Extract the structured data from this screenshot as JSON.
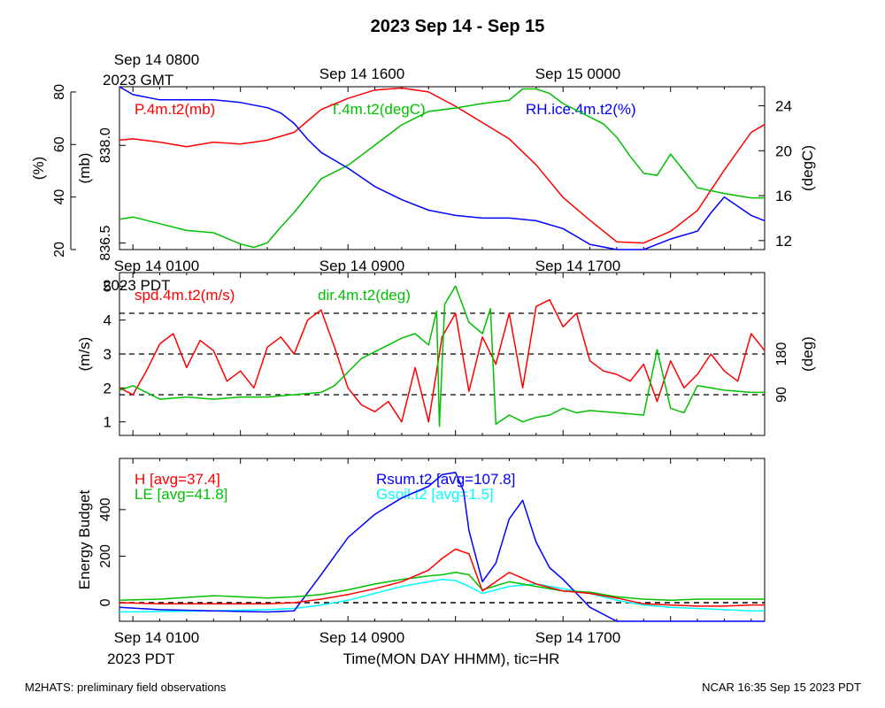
{
  "title": "2023 Sep 14 - Sep 15",
  "footer_left": "M2HATS: preliminary field observations",
  "footer_right": "NCAR 16:35 Sep 15 2023 PDT",
  "top_axis": {
    "labels": [
      "Sep 14 0800",
      "Sep 14 1600",
      "Sep 15 0000"
    ],
    "timezone": "2023 GMT"
  },
  "bottom_axis": {
    "labels": [
      "Sep 14 0100",
      "Sep 14 0900",
      "Sep 14 1700"
    ],
    "timezone": "2023 PDT",
    "xlabel": "Time(MON DAY HHMM), tic=HR"
  },
  "chart_data": [
    {
      "type": "line",
      "x_range_hours_pdt": [
        0.5,
        24.5
      ],
      "axes": {
        "rh_pct": {
          "label": "(%)",
          "ticks": [
            20,
            40,
            60,
            80
          ],
          "range": [
            20,
            82
          ]
        },
        "pressure_mb": {
          "label": "(mb)",
          "ticks": [
            "836.5",
            "838.0"
          ],
          "range": [
            836.4,
            838.9
          ]
        },
        "temp_degC": {
          "label": "(degC)",
          "ticks": [
            12,
            16,
            20,
            24
          ],
          "range": [
            11.2,
            25.7
          ]
        }
      },
      "series": [
        {
          "name": "P.4m.t2(mb)",
          "color": "#ff0000",
          "axis": "pressure_mb",
          "x": [
            0.5,
            1,
            2,
            3,
            4,
            5,
            6,
            7,
            8,
            9,
            10,
            11,
            12,
            13,
            14,
            15,
            16,
            17,
            18,
            19,
            20,
            21,
            22,
            23,
            24,
            24.5
          ],
          "y": [
            838.08,
            838.1,
            838.05,
            837.98,
            838.05,
            838.02,
            838.08,
            838.2,
            838.55,
            838.72,
            838.85,
            838.88,
            838.82,
            838.6,
            838.35,
            838.1,
            837.7,
            837.2,
            836.85,
            836.52,
            836.5,
            836.68,
            837.0,
            837.62,
            838.2,
            838.32
          ]
        },
        {
          "name": "T.4m.t2(degC)",
          "color": "#00c000",
          "axis": "temp_degC",
          "x": [
            0.5,
            1,
            2,
            3,
            4,
            5,
            5.5,
            6,
            6.5,
            7,
            8,
            9,
            10,
            11,
            12,
            13,
            14,
            15,
            15.5,
            16,
            16.5,
            17,
            18,
            18.5,
            19,
            19.5,
            20,
            20.5,
            21,
            22,
            23,
            24,
            24.5
          ],
          "y": [
            13.9,
            14.1,
            13.5,
            12.9,
            12.7,
            11.7,
            11.4,
            11.8,
            13.2,
            14.5,
            17.5,
            18.7,
            20.5,
            22.3,
            23.5,
            23.8,
            24.2,
            24.5,
            25.5,
            25.5,
            25.1,
            24.2,
            23.0,
            22.4,
            21.2,
            19.5,
            18.0,
            17.8,
            19.7,
            16.7,
            16.2,
            15.8,
            15.8
          ]
        },
        {
          "name": "RH.ice.4m.t2(%)",
          "color": "#0000ff",
          "axis": "rh_pct",
          "x": [
            0.5,
            1,
            2,
            3,
            4,
            5,
            6,
            6.5,
            7,
            7.5,
            8,
            9,
            10,
            11,
            12,
            13,
            14,
            15,
            16,
            17,
            18,
            19,
            20,
            20.5,
            21,
            22,
            22.5,
            23,
            24,
            24.5
          ],
          "y": [
            82,
            79,
            77,
            77,
            77,
            76,
            74,
            72,
            68,
            62,
            57,
            51,
            44,
            39,
            35,
            33,
            32,
            32,
            31,
            28,
            22,
            20,
            20,
            22,
            24,
            27,
            34,
            40,
            33,
            31
          ]
        }
      ]
    },
    {
      "type": "line",
      "x_range_hours_pdt": [
        0.5,
        24.5
      ],
      "axes": {
        "speed_ms": {
          "label": "(m/s)",
          "ticks": [
            1,
            2,
            3,
            4,
            5
          ],
          "range": [
            0.6,
            5.4
          ]
        },
        "dir_deg": {
          "label": "(deg)",
          "ticks": [
            90,
            180
          ],
          "range": [
            0,
            360
          ]
        }
      },
      "reference_lines_deg": [
        90,
        180,
        270
      ],
      "series": [
        {
          "name": "spd.4m.t2(m/s)",
          "color": "#ff0000",
          "axis": "speed_ms",
          "x": [
            0.5,
            1,
            1.5,
            2,
            2.5,
            3,
            3.5,
            4,
            4.5,
            5,
            5.5,
            6,
            6.5,
            7,
            7.5,
            8,
            8.5,
            9,
            9.5,
            10,
            10.5,
            11,
            11.5,
            12,
            12.5,
            13,
            13.5,
            14,
            14.5,
            15,
            15.5,
            16,
            16.5,
            17,
            17.5,
            18,
            18.5,
            19,
            19.5,
            20,
            20.5,
            21,
            21.5,
            22,
            22.5,
            23,
            23.5,
            24,
            24.5
          ],
          "y": [
            2.0,
            1.8,
            2.5,
            3.3,
            3.6,
            2.6,
            3.4,
            3.1,
            2.2,
            2.5,
            2.0,
            3.2,
            3.5,
            3.0,
            4.0,
            4.3,
            3.2,
            2.0,
            1.5,
            1.3,
            1.6,
            1.0,
            2.6,
            1.0,
            3.5,
            4.2,
            1.9,
            3.5,
            2.7,
            4.2,
            2.0,
            4.4,
            4.6,
            3.8,
            4.2,
            2.8,
            2.5,
            2.4,
            2.2,
            2.7,
            1.6,
            2.8,
            2.0,
            2.4,
            3.0,
            2.5,
            2.2,
            3.6,
            3.1
          ]
        },
        {
          "name": "dir.4m.t2(deg)",
          "color": "#00c000",
          "axis": "dir_deg",
          "x": [
            0.5,
            1,
            2,
            3,
            4,
            5,
            6,
            7,
            8,
            8.5,
            9,
            9.5,
            10,
            10.5,
            11,
            11.5,
            12,
            12.3,
            12.4,
            12.6,
            13,
            13.5,
            14,
            14.3,
            14.5,
            15,
            15.5,
            16,
            16.5,
            17,
            17.5,
            18,
            19,
            20,
            20.5,
            21,
            21.5,
            22,
            23,
            24,
            24.5
          ],
          "y": [
            100,
            110,
            80,
            85,
            80,
            85,
            85,
            90,
            95,
            110,
            140,
            170,
            185,
            200,
            215,
            225,
            200,
            275,
            20,
            290,
            330,
            250,
            225,
            280,
            25,
            45,
            30,
            40,
            45,
            60,
            50,
            55,
            50,
            45,
            190,
            60,
            50,
            110,
            100,
            95,
            95
          ]
        }
      ]
    },
    {
      "type": "line",
      "x_range_hours_pdt": [
        0.5,
        24.5
      ],
      "ylabel": "Energy Budget",
      "ticks": [
        0,
        200,
        400
      ],
      "yrange": [
        -80,
        620
      ],
      "reference_lines": [
        0
      ],
      "series": [
        {
          "name": "H [avg=37.4]",
          "color": "#ff0000",
          "x": [
            0.5,
            2,
            4,
            6,
            7,
            8,
            9,
            10,
            11,
            12,
            12.5,
            13,
            13.5,
            14,
            15,
            16,
            17,
            18,
            19,
            20,
            21,
            22,
            23,
            24,
            24.5
          ],
          "y": [
            0,
            -5,
            -5,
            -5,
            0,
            15,
            35,
            60,
            90,
            140,
            190,
            230,
            210,
            50,
            130,
            80,
            50,
            40,
            20,
            -5,
            -10,
            -15,
            -15,
            -10,
            -10
          ]
        },
        {
          "name": "LE [avg=41.8]",
          "color": "#00c000",
          "x": [
            0.5,
            2,
            4,
            6,
            7,
            8,
            9,
            10,
            11,
            12,
            12.5,
            13,
            13.5,
            14,
            15,
            16,
            17,
            18,
            19,
            20,
            21,
            22,
            23,
            24,
            24.5
          ],
          "y": [
            10,
            15,
            30,
            20,
            25,
            35,
            55,
            80,
            100,
            115,
            120,
            130,
            120,
            55,
            90,
            70,
            50,
            45,
            25,
            15,
            10,
            15,
            15,
            15,
            15
          ]
        },
        {
          "name": "Rsum.t2 [avg=107.8]",
          "color": "#0000ff",
          "x": [
            0.5,
            2,
            4,
            6,
            7,
            8,
            9,
            10,
            11,
            12,
            12.5,
            13,
            13.3,
            13.5,
            14,
            14.5,
            15,
            15.5,
            16,
            16.5,
            17,
            17.5,
            18,
            19,
            20,
            21,
            22,
            23,
            24,
            24.5
          ],
          "y": [
            -20,
            -30,
            -35,
            -40,
            -35,
            120,
            280,
            380,
            450,
            500,
            550,
            560,
            480,
            310,
            90,
            170,
            360,
            440,
            260,
            150,
            100,
            40,
            -20,
            -90,
            -90,
            -90,
            -90,
            -90,
            -90,
            -90
          ]
        },
        {
          "name": "Gsoil.t2 [avg=1.5]",
          "color": "#00ffff",
          "x": [
            0.5,
            2,
            4,
            6,
            7,
            8,
            9,
            10,
            11,
            12,
            12.5,
            13,
            13.5,
            14,
            15,
            16,
            17,
            18,
            19,
            20,
            21,
            22,
            23,
            24,
            24.5
          ],
          "y": [
            -40,
            -38,
            -35,
            -30,
            -25,
            -10,
            10,
            40,
            70,
            90,
            100,
            95,
            70,
            40,
            70,
            80,
            60,
            40,
            10,
            -10,
            -20,
            -25,
            -30,
            -35,
            -35
          ]
        }
      ]
    }
  ]
}
